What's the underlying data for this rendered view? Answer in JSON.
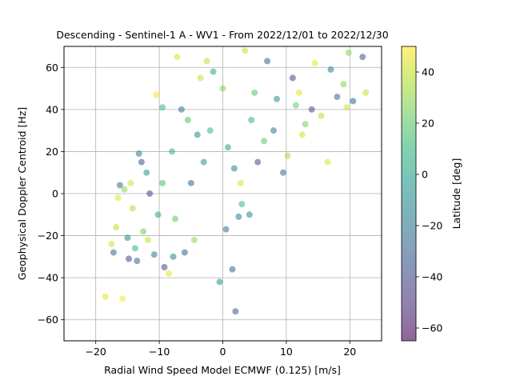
{
  "chart_data": {
    "type": "scatter",
    "title": "Descending - Sentinel-1 A - WV1 - From 2022/12/01 to 2022/12/30",
    "xlabel": "Radial Wind Speed Model ECMWF (0.125) [m/s]",
    "ylabel": "Geophysical Doppler Centroid [Hz]",
    "xlim": [
      -25,
      25
    ],
    "ylim": [
      -70,
      70
    ],
    "xticks": [
      -20,
      -10,
      0,
      10,
      20
    ],
    "xtick_labels": [
      "−20",
      "−10",
      "0",
      "10",
      "20"
    ],
    "yticks": [
      -60,
      -40,
      -20,
      0,
      20,
      40,
      60
    ],
    "ytick_labels": [
      "−60",
      "−40",
      "−20",
      "0",
      "20",
      "40",
      "60"
    ],
    "grid": true,
    "marker_alpha": 0.55,
    "colorbar": {
      "label": "Latitude [deg]",
      "colormap": "viridis",
      "range": [
        -65,
        50
      ],
      "ticks": [
        -60,
        -40,
        -20,
        0,
        20,
        40
      ],
      "tick_labels": [
        "−60",
        "−40",
        "−20",
        "0",
        "20",
        "40"
      ],
      "colors": [
        "#440154",
        "#482878",
        "#3e4989",
        "#31688e",
        "#26828e",
        "#1f9e89",
        "#35b779",
        "#6ece58",
        "#b5de2b",
        "#fde725"
      ]
    },
    "points": [
      [
        -18.5,
        -49,
        45
      ],
      [
        -15.8,
        -50,
        48
      ],
      [
        -17.5,
        -24,
        42
      ],
      [
        -17.2,
        -28,
        -30
      ],
      [
        -16.8,
        -16,
        38
      ],
      [
        -16.5,
        -2,
        44
      ],
      [
        -16.2,
        4,
        -25
      ],
      [
        -15.5,
        2,
        30
      ],
      [
        -15.0,
        -21,
        -12
      ],
      [
        -14.8,
        -31,
        -40
      ],
      [
        -14.2,
        -7,
        36
      ],
      [
        -14.5,
        5,
        42
      ],
      [
        -13.5,
        -32,
        -28
      ],
      [
        -13.2,
        19,
        -18
      ],
      [
        -12.8,
        15,
        -35
      ],
      [
        -12.5,
        -18,
        25
      ],
      [
        -13.8,
        -26,
        10
      ],
      [
        -12.0,
        10,
        -5
      ],
      [
        -11.8,
        -22,
        40
      ],
      [
        -11.5,
        0,
        -42
      ],
      [
        -10.5,
        47,
        48
      ],
      [
        -9.5,
        41,
        12
      ],
      [
        -10.8,
        -29,
        -20
      ],
      [
        -10.2,
        -10,
        5
      ],
      [
        -9.2,
        -35,
        -38
      ],
      [
        -8.5,
        -38,
        46
      ],
      [
        -7.8,
        -30,
        -15
      ],
      [
        -7.2,
        65,
        44
      ],
      [
        -6.5,
        40,
        -22
      ],
      [
        -5.5,
        35,
        18
      ],
      [
        -6.0,
        -28,
        -32
      ],
      [
        -4.5,
        -22,
        30
      ],
      [
        -3.5,
        55,
        40
      ],
      [
        -2.5,
        63,
        38
      ],
      [
        -1.5,
        58,
        5
      ],
      [
        -0.5,
        -42,
        -5
      ],
      [
        0.5,
        -17,
        -25
      ],
      [
        1.5,
        -36,
        -30
      ],
      [
        2.0,
        -56,
        -35
      ],
      [
        2.5,
        -11,
        -15
      ],
      [
        3.0,
        -5,
        10
      ],
      [
        2.8,
        5,
        44
      ],
      [
        4.2,
        -10,
        -12
      ],
      [
        5.5,
        15,
        -38
      ],
      [
        6.5,
        25,
        20
      ],
      [
        8.0,
        30,
        -20
      ],
      [
        9.5,
        10,
        -30
      ],
      [
        10.2,
        18,
        35
      ],
      [
        11.0,
        55,
        -42
      ],
      [
        12.0,
        48,
        46
      ],
      [
        13.0,
        33,
        25
      ],
      [
        14.0,
        40,
        -40
      ],
      [
        15.5,
        37,
        38
      ],
      [
        16.5,
        15,
        44
      ],
      [
        17.0,
        59,
        -18
      ],
      [
        18.0,
        46,
        -25
      ],
      [
        19.0,
        52,
        28
      ],
      [
        19.5,
        41,
        42
      ],
      [
        20.5,
        44,
        -28
      ],
      [
        22.0,
        65,
        -35
      ],
      [
        22.5,
        48,
        40
      ],
      [
        19.8,
        67,
        30
      ],
      [
        14.5,
        62,
        45
      ],
      [
        12.5,
        28,
        42
      ],
      [
        11.5,
        42,
        22
      ],
      [
        7.0,
        63,
        -32
      ],
      [
        5.0,
        48,
        18
      ],
      [
        3.5,
        68,
        40
      ],
      [
        0.0,
        50,
        28
      ],
      [
        -2.0,
        30,
        12
      ],
      [
        -4.0,
        28,
        -10
      ],
      [
        -8.0,
        20,
        8
      ],
      [
        -9.5,
        5,
        15
      ],
      [
        -7.5,
        -12,
        20
      ],
      [
        -5.0,
        5,
        -28
      ],
      [
        -3.0,
        15,
        -8
      ],
      [
        0.8,
        22,
        2
      ],
      [
        1.8,
        12,
        -18
      ],
      [
        4.5,
        35,
        10
      ],
      [
        8.5,
        45,
        -8
      ]
    ]
  }
}
